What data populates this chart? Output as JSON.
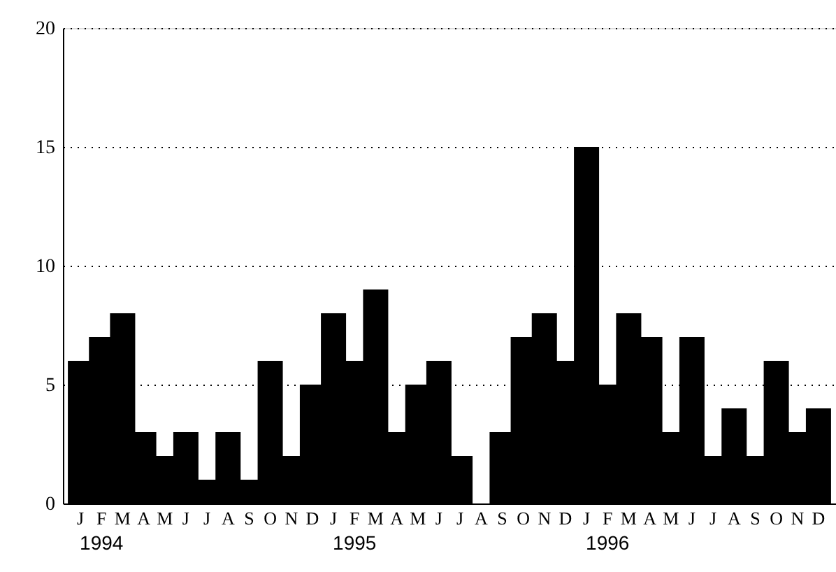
{
  "chart_data": {
    "type": "bar",
    "categories": [
      "J",
      "F",
      "M",
      "A",
      "M",
      "J",
      "J",
      "A",
      "S",
      "O",
      "N",
      "D",
      "J",
      "F",
      "M",
      "A",
      "M",
      "J",
      "J",
      "A",
      "S",
      "O",
      "N",
      "D",
      "J",
      "F",
      "M",
      "A",
      "M",
      "J",
      "J",
      "A",
      "S",
      "O",
      "N",
      "D"
    ],
    "values": [
      6,
      7,
      8,
      3,
      2,
      3,
      1,
      3,
      1,
      6,
      2,
      5,
      8,
      6,
      9,
      3,
      5,
      6,
      2,
      0,
      3,
      7,
      8,
      6,
      15,
      5,
      8,
      7,
      3,
      7,
      2,
      4,
      2,
      6,
      3,
      4
    ],
    "color": "#000000",
    "ylim": [
      0,
      20
    ],
    "yticks": [
      0,
      5,
      10,
      15,
      20
    ],
    "grid": "y",
    "annotations": [
      "1994",
      "1995",
      "1996"
    ]
  }
}
